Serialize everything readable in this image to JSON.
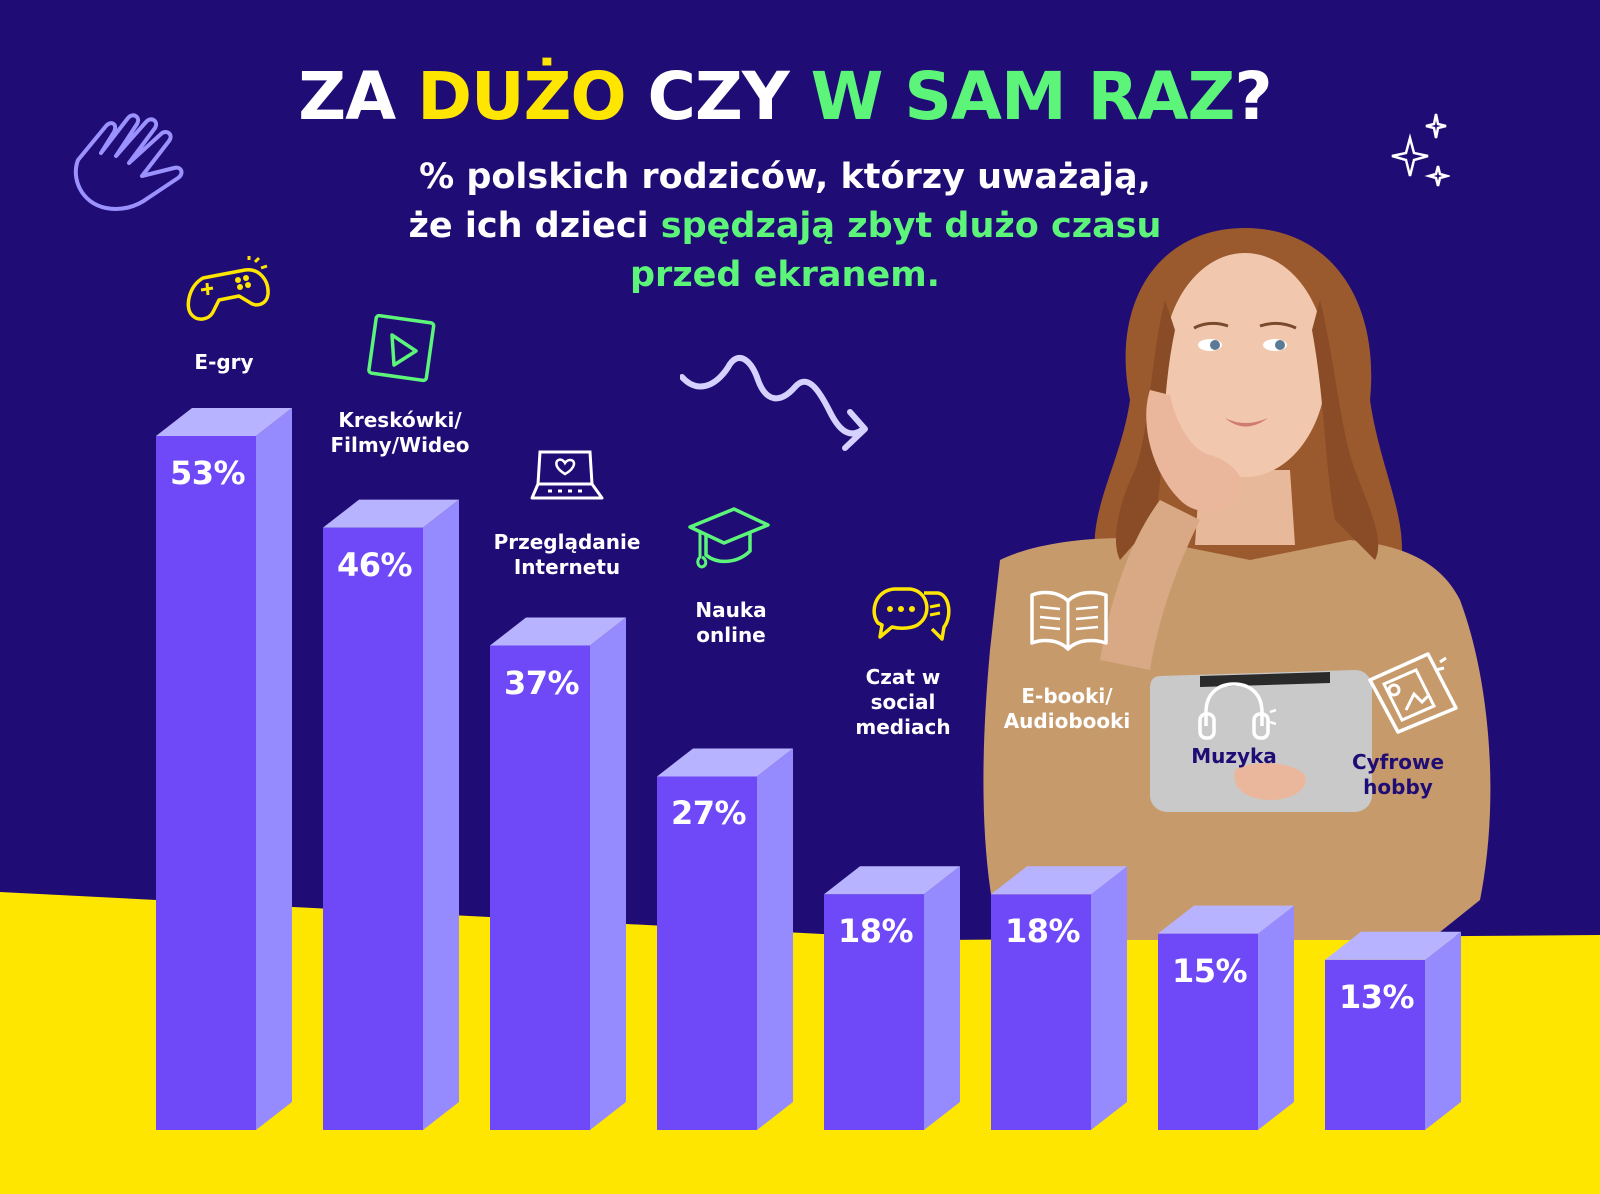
{
  "title": {
    "part1": "ZA ",
    "part2": "DUŻO",
    "part3": " CZY ",
    "part4": "W SAM RAZ",
    "part5": "?"
  },
  "subtitle": {
    "line1": "% polskich rodziców, którzy uważają,",
    "line2_plain": "że ich dzieci ",
    "line2_accent": "spędzają zbyt dużo czasu",
    "line3_accent": "przed ekranem."
  },
  "colors": {
    "background": "#1f0c75",
    "floor": "#ffe600",
    "bar_front": "#6f48f7",
    "bar_side": "#968aff",
    "bar_top": "#b8b3ff",
    "accent_yellow": "#ffe600",
    "accent_green": "#5cf57a",
    "title_white": "#ffffff",
    "category_label_dark": "#1f0c75"
  },
  "icons": [
    {
      "name": "waving-hand-icon",
      "color": "#9b92ff"
    },
    {
      "name": "game-controller-icon",
      "color": "#ffe600"
    },
    {
      "name": "play-video-icon",
      "color": "#5cf57a"
    },
    {
      "name": "laptop-heart-icon",
      "color": "#ffffff"
    },
    {
      "name": "graduation-cap-icon",
      "color": "#5cf57a"
    },
    {
      "name": "chat-bubbles-icon",
      "color": "#ffe600"
    },
    {
      "name": "open-book-icon",
      "color": "#ffffff"
    },
    {
      "name": "headphones-icon",
      "color": "#ffffff"
    },
    {
      "name": "digital-hobby-icon",
      "color": "#ffffff"
    },
    {
      "name": "sparkle-stars-icon",
      "color": "#ffffff"
    },
    {
      "name": "squiggle-arrow-icon",
      "color": "#d6d2ff"
    }
  ],
  "chart_data": {
    "type": "bar",
    "categories": [
      "E-gry",
      "Kreskówki/\nFilmy/Wideo",
      "Przeglądanie\nInternetu",
      "Nauka\nonline",
      "Czat w\nsocial\nmediach",
      "E-booki/\nAudiobooki",
      "Muzyka",
      "Cyfrowe\nhobby"
    ],
    "values": [
      53,
      46,
      37,
      27,
      18,
      18,
      15,
      13
    ],
    "value_labels": [
      "53%",
      "46%",
      "37%",
      "27%",
      "18%",
      "18%",
      "15%",
      "13%"
    ],
    "units": "%",
    "ylim": [
      0,
      53
    ],
    "grid": false,
    "legend": "none",
    "style": "3d-bar"
  }
}
